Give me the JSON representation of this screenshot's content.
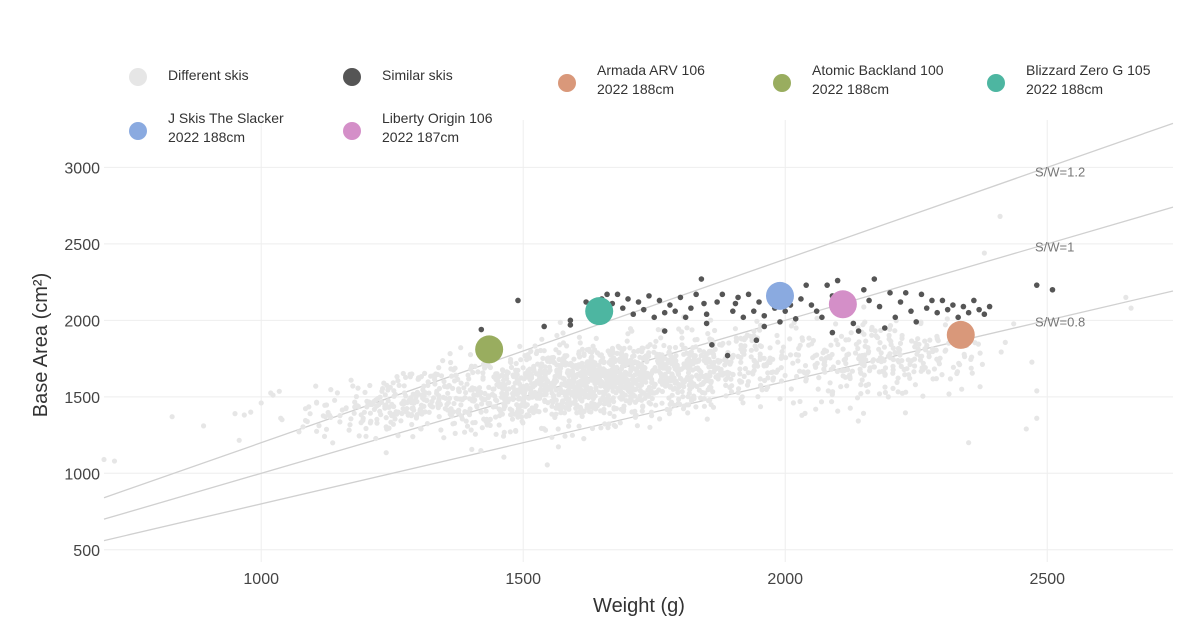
{
  "chart_data": {
    "type": "scatter",
    "xlabel": "Weight (g)",
    "ylabel": "Base Area (cm²)",
    "xlim": [
      700,
      2740
    ],
    "ylim": [
      420,
      3310
    ],
    "x_ticks": [
      1000,
      1500,
      2000,
      2500
    ],
    "y_ticks": [
      500,
      1000,
      1500,
      2000,
      2500,
      3000
    ],
    "grid": true,
    "legend_position": "top",
    "reference_lines": [
      {
        "label": "S/W=1.2",
        "slope": 1.2
      },
      {
        "label": "S/W=1",
        "slope": 1.0
      },
      {
        "label": "S/W=0.8",
        "slope": 0.8
      }
    ],
    "series": [
      {
        "name": "Different skis",
        "color": "#e6e6e6",
        "description_points": "dense cloud",
        "clusters": [
          {
            "x_center": 1650,
            "y_center": 1600,
            "x_spread": 330,
            "y_spread": 230,
            "count": 1500
          },
          {
            "x_center": 1250,
            "y_center": 1450,
            "x_spread": 160,
            "y_spread": 160,
            "count": 180
          },
          {
            "x_center": 2200,
            "y_center": 1750,
            "x_spread": 180,
            "y_spread": 260,
            "count": 260
          }
        ],
        "outliers": [
          {
            "x": 720,
            "y": 1080
          },
          {
            "x": 700,
            "y": 1090
          },
          {
            "x": 830,
            "y": 1370
          },
          {
            "x": 890,
            "y": 1310
          },
          {
            "x": 950,
            "y": 1390
          },
          {
            "x": 980,
            "y": 1400
          },
          {
            "x": 1000,
            "y": 1460
          },
          {
            "x": 2410,
            "y": 2680
          },
          {
            "x": 2660,
            "y": 2080
          },
          {
            "x": 2650,
            "y": 2150
          },
          {
            "x": 2460,
            "y": 1290
          },
          {
            "x": 2480,
            "y": 1360
          },
          {
            "x": 2350,
            "y": 1200
          },
          {
            "x": 2380,
            "y": 2440
          }
        ]
      },
      {
        "name": "Similar skis",
        "color": "#555555",
        "points": [
          {
            "x": 1420,
            "y": 1940
          },
          {
            "x": 1490,
            "y": 2130
          },
          {
            "x": 1540,
            "y": 1960
          },
          {
            "x": 1590,
            "y": 1970
          },
          {
            "x": 1590,
            "y": 2000
          },
          {
            "x": 1620,
            "y": 2120
          },
          {
            "x": 1650,
            "y": 2140
          },
          {
            "x": 1660,
            "y": 2170
          },
          {
            "x": 1670,
            "y": 2110
          },
          {
            "x": 1680,
            "y": 2170
          },
          {
            "x": 1690,
            "y": 2080
          },
          {
            "x": 1700,
            "y": 2140
          },
          {
            "x": 1710,
            "y": 2040
          },
          {
            "x": 1720,
            "y": 2120
          },
          {
            "x": 1730,
            "y": 2070
          },
          {
            "x": 1740,
            "y": 2160
          },
          {
            "x": 1750,
            "y": 2020
          },
          {
            "x": 1760,
            "y": 2130
          },
          {
            "x": 1770,
            "y": 2050
          },
          {
            "x": 1780,
            "y": 2100
          },
          {
            "x": 1790,
            "y": 2060
          },
          {
            "x": 1800,
            "y": 2150
          },
          {
            "x": 1810,
            "y": 2020
          },
          {
            "x": 1820,
            "y": 2080
          },
          {
            "x": 1830,
            "y": 2170
          },
          {
            "x": 1840,
            "y": 2270
          },
          {
            "x": 1845,
            "y": 2110
          },
          {
            "x": 1850,
            "y": 2040
          },
          {
            "x": 1860,
            "y": 1840
          },
          {
            "x": 1870,
            "y": 2120
          },
          {
            "x": 1880,
            "y": 2170
          },
          {
            "x": 1890,
            "y": 1770
          },
          {
            "x": 1900,
            "y": 2060
          },
          {
            "x": 1905,
            "y": 2110
          },
          {
            "x": 1910,
            "y": 2150
          },
          {
            "x": 1920,
            "y": 2020
          },
          {
            "x": 1930,
            "y": 2170
          },
          {
            "x": 1940,
            "y": 2060
          },
          {
            "x": 1945,
            "y": 1870
          },
          {
            "x": 1950,
            "y": 2120
          },
          {
            "x": 1960,
            "y": 2030
          },
          {
            "x": 1970,
            "y": 2180
          },
          {
            "x": 1980,
            "y": 2080
          },
          {
            "x": 1990,
            "y": 1990
          },
          {
            "x": 2000,
            "y": 2060
          },
          {
            "x": 2010,
            "y": 2100
          },
          {
            "x": 2020,
            "y": 2010
          },
          {
            "x": 2030,
            "y": 2140
          },
          {
            "x": 2040,
            "y": 2230
          },
          {
            "x": 2050,
            "y": 2100
          },
          {
            "x": 2060,
            "y": 2060
          },
          {
            "x": 2070,
            "y": 2020
          },
          {
            "x": 2080,
            "y": 2230
          },
          {
            "x": 2090,
            "y": 2160
          },
          {
            "x": 2100,
            "y": 2260
          },
          {
            "x": 2110,
            "y": 2120
          },
          {
            "x": 2120,
            "y": 2050
          },
          {
            "x": 2130,
            "y": 1980
          },
          {
            "x": 2140,
            "y": 1930
          },
          {
            "x": 2150,
            "y": 2200
          },
          {
            "x": 2160,
            "y": 2130
          },
          {
            "x": 2170,
            "y": 2270
          },
          {
            "x": 2180,
            "y": 2090
          },
          {
            "x": 2190,
            "y": 1950
          },
          {
            "x": 2200,
            "y": 2180
          },
          {
            "x": 2210,
            "y": 2020
          },
          {
            "x": 2220,
            "y": 2120
          },
          {
            "x": 2230,
            "y": 2180
          },
          {
            "x": 2240,
            "y": 2060
          },
          {
            "x": 2250,
            "y": 1990
          },
          {
            "x": 2260,
            "y": 2170
          },
          {
            "x": 2270,
            "y": 2080
          },
          {
            "x": 2280,
            "y": 2130
          },
          {
            "x": 2290,
            "y": 2050
          },
          {
            "x": 2300,
            "y": 2130
          },
          {
            "x": 2310,
            "y": 2070
          },
          {
            "x": 2320,
            "y": 2100
          },
          {
            "x": 2330,
            "y": 2020
          },
          {
            "x": 2340,
            "y": 2090
          },
          {
            "x": 2350,
            "y": 2050
          },
          {
            "x": 2360,
            "y": 2130
          },
          {
            "x": 2370,
            "y": 2070
          },
          {
            "x": 2380,
            "y": 2040
          },
          {
            "x": 2390,
            "y": 2090
          },
          {
            "x": 2480,
            "y": 2230
          },
          {
            "x": 2510,
            "y": 2200
          },
          {
            "x": 1850,
            "y": 1980
          },
          {
            "x": 1960,
            "y": 1960
          },
          {
            "x": 2090,
            "y": 1920
          },
          {
            "x": 1770,
            "y": 1930
          }
        ]
      }
    ],
    "highlighted": [
      {
        "name": "Armada ARV 106",
        "sub": "2022 188cm",
        "color": "#d9987a",
        "x": 2335,
        "y": 1905
      },
      {
        "name": "Atomic Backland 100",
        "sub": "2022 188cm",
        "color": "#99ad5f",
        "x": 1435,
        "y": 1810
      },
      {
        "name": "Blizzard Zero G 105",
        "sub": "2022 188cm",
        "color": "#4db6a1",
        "x": 1645,
        "y": 2060
      },
      {
        "name": "J Skis The Slacker",
        "sub": "2022 188cm",
        "color": "#8aaae0",
        "x": 1990,
        "y": 2160
      },
      {
        "name": "Liberty Origin 106",
        "sub": "2022 187cm",
        "color": "#d48fc8",
        "x": 2110,
        "y": 2105
      }
    ]
  }
}
